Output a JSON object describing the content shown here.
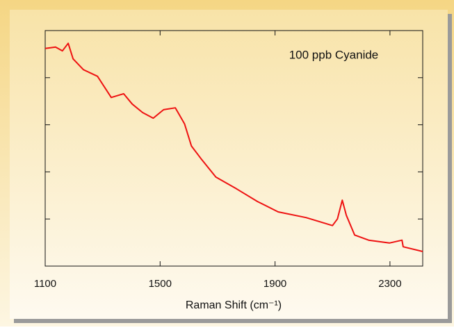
{
  "chart_data": {
    "type": "line",
    "annotation": "100 ppb Cyanide",
    "x_label": "Raman Shift (cm⁻¹)",
    "xlim": [
      1100,
      2414
    ],
    "xticks": [
      1100,
      1500,
      1900,
      2300
    ],
    "ylim": [
      0,
      5
    ],
    "yticks": [
      0,
      1,
      2,
      3,
      4,
      5
    ],
    "series": [
      {
        "color": "#ee1111",
        "x": [
          1100,
          1136,
          1160,
          1180,
          1197,
          1233,
          1282,
          1330,
          1373,
          1403,
          1439,
          1476,
          1512,
          1553,
          1585,
          1609,
          1645,
          1694,
          1766,
          1839,
          1911,
          2008,
          2100,
          2117,
          2134,
          2148,
          2177,
          2226,
          2298,
          2342,
          2346,
          2414
        ],
        "values": [
          4.62,
          4.65,
          4.57,
          4.73,
          4.4,
          4.17,
          4.03,
          3.58,
          3.66,
          3.44,
          3.26,
          3.14,
          3.32,
          3.36,
          3.02,
          2.55,
          2.26,
          1.89,
          1.64,
          1.37,
          1.15,
          1.03,
          0.86,
          1.0,
          1.4,
          1.08,
          0.66,
          0.55,
          0.49,
          0.55,
          0.41,
          0.31
        ]
      }
    ]
  }
}
